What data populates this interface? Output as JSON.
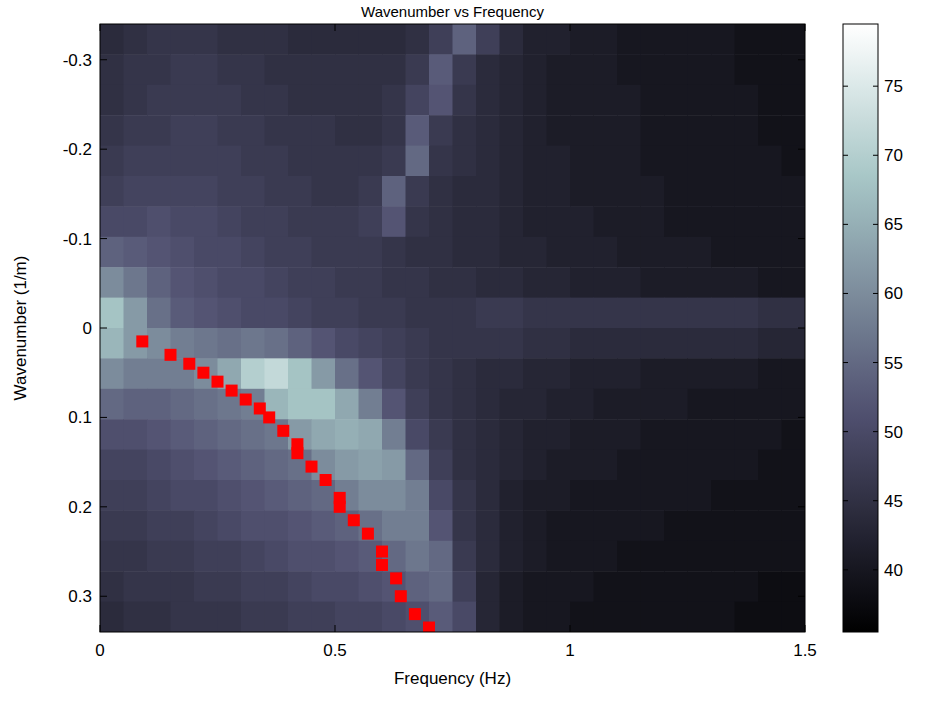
{
  "chart_data": {
    "type": "heatmap",
    "title": "Wavenumber vs Frequency",
    "xlabel": "Frequency (Hz)",
    "ylabel": "Wavenumber (1/m)",
    "xlim": [
      0,
      1.5
    ],
    "xticks": [
      0,
      0.5,
      1,
      1.5
    ],
    "ylim": [
      0.34,
      -0.34
    ],
    "yticks": [
      -0.3,
      -0.2,
      -0.1,
      0,
      0.1,
      0.2,
      0.3
    ],
    "colorbar": {
      "lim": [
        35.5,
        79.5
      ],
      "ticks": [
        40,
        45,
        50,
        55,
        60,
        65,
        70,
        75
      ]
    },
    "cells": [
      [
        44,
        45,
        46,
        46,
        46,
        45,
        45,
        45,
        44,
        44,
        44,
        44,
        44,
        45,
        48,
        54,
        48,
        44,
        42,
        42,
        41,
        41,
        40,
        40,
        40,
        40,
        40,
        39,
        39,
        39
      ],
      [
        45,
        46,
        46,
        47,
        47,
        46,
        46,
        45,
        45,
        45,
        45,
        45,
        45,
        47,
        53,
        47,
        44,
        43,
        42,
        41,
        41,
        41,
        40,
        40,
        40,
        40,
        40,
        39,
        39,
        39
      ],
      [
        45,
        46,
        47,
        47,
        47,
        47,
        46,
        46,
        45,
        45,
        45,
        45,
        46,
        49,
        52,
        46,
        44,
        43,
        42,
        41,
        41,
        41,
        41,
        40,
        40,
        40,
        40,
        40,
        39,
        39
      ],
      [
        46,
        47,
        47,
        48,
        48,
        47,
        47,
        46,
        46,
        46,
        45,
        45,
        46,
        53,
        47,
        45,
        44,
        43,
        42,
        41,
        41,
        41,
        41,
        40,
        40,
        40,
        40,
        40,
        39,
        39
      ],
      [
        47,
        48,
        48,
        48,
        48,
        48,
        47,
        47,
        46,
        46,
        46,
        46,
        47,
        55,
        46,
        45,
        44,
        43,
        42,
        42,
        41,
        41,
        41,
        40,
        40,
        40,
        40,
        40,
        40,
        39
      ],
      [
        48,
        49,
        49,
        49,
        49,
        48,
        48,
        47,
        47,
        46,
        46,
        47,
        54,
        47,
        45,
        44,
        44,
        43,
        42,
        42,
        41,
        41,
        41,
        41,
        40,
        40,
        40,
        40,
        40,
        40
      ],
      [
        50,
        50,
        51,
        50,
        50,
        49,
        48,
        48,
        47,
        47,
        47,
        48,
        52,
        46,
        45,
        44,
        44,
        43,
        42,
        42,
        42,
        41,
        41,
        41,
        40,
        40,
        40,
        40,
        40,
        40
      ],
      [
        54,
        53,
        52,
        51,
        50,
        50,
        49,
        48,
        48,
        47,
        47,
        47,
        46,
        45,
        45,
        44,
        44,
        43,
        43,
        42,
        42,
        42,
        41,
        41,
        41,
        41,
        40,
        40,
        40,
        40
      ],
      [
        60,
        57,
        54,
        52,
        51,
        50,
        50,
        49,
        48,
        48,
        47,
        47,
        46,
        46,
        45,
        45,
        44,
        44,
        43,
        43,
        42,
        42,
        42,
        41,
        41,
        41,
        41,
        41,
        40,
        40
      ],
      [
        68,
        62,
        56,
        53,
        52,
        51,
        50,
        50,
        49,
        48,
        48,
        47,
        47,
        46,
        46,
        46,
        47,
        47,
        46,
        46,
        46,
        46,
        46,
        46,
        46,
        46,
        46,
        46,
        45,
        45
      ],
      [
        66,
        62,
        60,
        58,
        57,
        56,
        57,
        56,
        54,
        52,
        50,
        49,
        48,
        47,
        46,
        46,
        46,
        46,
        45,
        45,
        44,
        44,
        44,
        44,
        44,
        44,
        44,
        44,
        43,
        43
      ],
      [
        60,
        58,
        58,
        58,
        60,
        64,
        70,
        72,
        68,
        62,
        56,
        52,
        49,
        47,
        46,
        45,
        44,
        44,
        43,
        43,
        42,
        42,
        42,
        41,
        41,
        41,
        41,
        41,
        40,
        40
      ],
      [
        55,
        54,
        54,
        55,
        56,
        57,
        58,
        66,
        68,
        68,
        64,
        58,
        52,
        48,
        46,
        45,
        44,
        43,
        43,
        42,
        42,
        41,
        41,
        41,
        41,
        40,
        40,
        40,
        40,
        40
      ],
      [
        51,
        51,
        52,
        53,
        54,
        55,
        56,
        57,
        62,
        64,
        65,
        64,
        58,
        50,
        47,
        45,
        44,
        43,
        42,
        42,
        41,
        41,
        41,
        40,
        40,
        40,
        40,
        40,
        40,
        39
      ],
      [
        49,
        49,
        50,
        51,
        52,
        53,
        54,
        55,
        56,
        60,
        62,
        63,
        62,
        55,
        48,
        45,
        44,
        43,
        42,
        41,
        41,
        41,
        40,
        40,
        40,
        40,
        40,
        40,
        39,
        39
      ],
      [
        48,
        48,
        49,
        50,
        50,
        51,
        52,
        53,
        54,
        55,
        58,
        60,
        60,
        58,
        50,
        46,
        44,
        42,
        41,
        41,
        40,
        40,
        40,
        40,
        40,
        40,
        39,
        39,
        39,
        39
      ],
      [
        47,
        47,
        48,
        48,
        49,
        50,
        51,
        51,
        52,
        53,
        54,
        56,
        58,
        58,
        52,
        46,
        44,
        42,
        41,
        40,
        40,
        40,
        40,
        40,
        39,
        39,
        39,
        39,
        39,
        39
      ],
      [
        46,
        46,
        47,
        47,
        48,
        48,
        49,
        50,
        51,
        51,
        52,
        53,
        55,
        57,
        55,
        47,
        44,
        42,
        41,
        40,
        40,
        40,
        39,
        39,
        39,
        39,
        39,
        39,
        39,
        39
      ],
      [
        45,
        46,
        46,
        46,
        47,
        47,
        48,
        48,
        49,
        50,
        50,
        51,
        52,
        54,
        55,
        48,
        43,
        41,
        40,
        40,
        40,
        39,
        39,
        39,
        39,
        39,
        39,
        39,
        38,
        38
      ],
      [
        44,
        45,
        45,
        46,
        46,
        46,
        47,
        47,
        48,
        48,
        49,
        49,
        50,
        51,
        53,
        50,
        43,
        41,
        40,
        40,
        39,
        39,
        39,
        39,
        39,
        39,
        39,
        38,
        38,
        38
      ]
    ],
    "points": {
      "color": "#ff0000",
      "marker": "square",
      "x": [
        0.09,
        0.15,
        0.19,
        0.22,
        0.25,
        0.28,
        0.31,
        0.34,
        0.36,
        0.39,
        0.42,
        0.42,
        0.45,
        0.48,
        0.51,
        0.51,
        0.54,
        0.57,
        0.6,
        0.6,
        0.63,
        0.64,
        0.67,
        0.7
      ],
      "y": [
        0.015,
        0.03,
        0.04,
        0.05,
        0.06,
        0.07,
        0.08,
        0.09,
        0.1,
        0.115,
        0.13,
        0.14,
        0.155,
        0.17,
        0.19,
        0.2,
        0.215,
        0.23,
        0.25,
        0.265,
        0.28,
        0.3,
        0.32,
        0.335
      ]
    }
  }
}
